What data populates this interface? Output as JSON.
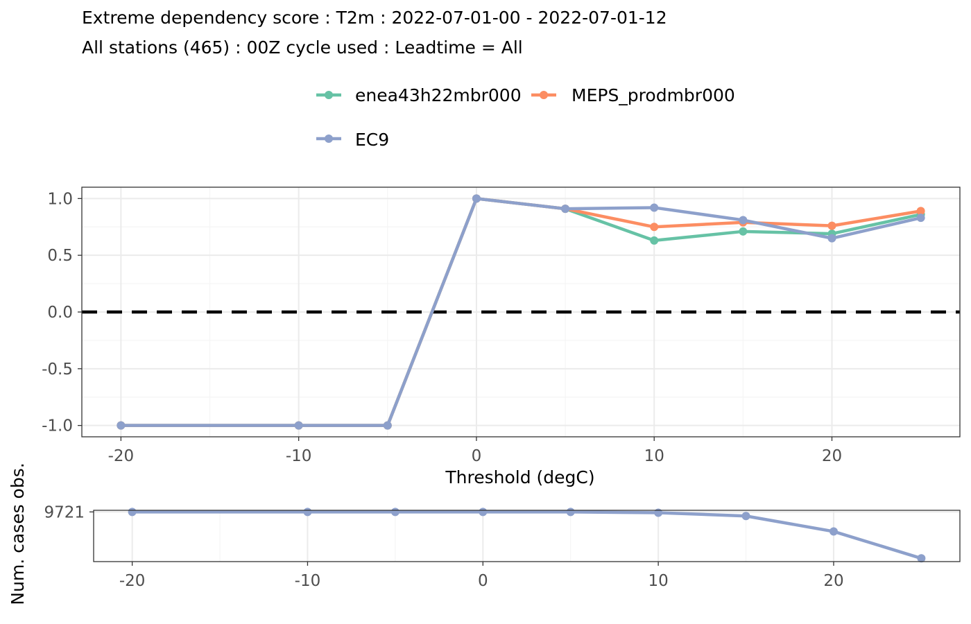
{
  "title": "Extreme dependency score : T2m : 2022-07-01-00 - 2022-07-01-12",
  "subtitle": "All stations (465) : 00Z cycle used : Leadtime = All",
  "colors": {
    "enea43h22mbr000": "#66c2a5",
    "MEPS_prodmbr000": "#fc8d62",
    "EC9": "#8da0cb",
    "zero_line": "#000000",
    "grid_major": "#ebebeb",
    "grid_minor": "#f5f5f5",
    "panel_border": "#333333"
  },
  "legend": {
    "placement": "top",
    "items": [
      {
        "name": "enea43h22mbr000",
        "color_key": "enea43h22mbr000"
      },
      {
        "name": "MEPS_prodmbr000",
        "color_key": "MEPS_prodmbr000"
      },
      {
        "name": "EC9",
        "color_key": "EC9"
      }
    ]
  },
  "chart_data": [
    {
      "type": "line",
      "xlabel": "Threshold (degC)",
      "ylabel": "",
      "xlim": [
        -22.2,
        27.2
      ],
      "ylim": [
        -1.1,
        1.1
      ],
      "xticks": [
        -20,
        -10,
        0,
        10,
        20
      ],
      "yticks": [
        1.0,
        0.5,
        0.0,
        -0.5,
        -1.0
      ],
      "ytick_labels": [
        "1.0",
        "0.5",
        "0.0",
        "-0.5",
        "-1.0"
      ],
      "grid": true,
      "reference_line": {
        "y": 0,
        "style": "dashed"
      },
      "x": [
        -20,
        -10,
        -5,
        0,
        5,
        10,
        15,
        20,
        25
      ],
      "series": [
        {
          "name": "enea43h22mbr000",
          "values": [
            -1,
            -1,
            -1,
            1,
            0.91,
            0.63,
            0.71,
            0.69,
            0.86
          ]
        },
        {
          "name": "MEPS_prodmbr000",
          "values": [
            -1,
            -1,
            -1,
            1,
            0.91,
            0.75,
            0.79,
            0.76,
            0.89
          ]
        },
        {
          "name": "EC9",
          "values": [
            -1,
            -1,
            -1,
            1,
            0.91,
            0.92,
            0.81,
            0.65,
            0.83
          ]
        }
      ]
    },
    {
      "type": "line",
      "xlabel": "",
      "ylabel": "Num. cases obs.",
      "xlim": [
        -22.2,
        27.2
      ],
      "ylim": [
        9660,
        9723
      ],
      "xticks": [
        -20,
        -10,
        0,
        10,
        20
      ],
      "yticks": [
        9721
      ],
      "ytick_labels": [
        "9721"
      ],
      "grid": true,
      "x": [
        -20,
        -10,
        -5,
        0,
        5,
        10,
        15,
        20,
        25
      ],
      "series": [
        {
          "name": "EC9",
          "values": [
            9721,
            9721,
            9721,
            9721,
            9721,
            9720,
            9716,
            9697,
            9664
          ]
        }
      ]
    }
  ]
}
